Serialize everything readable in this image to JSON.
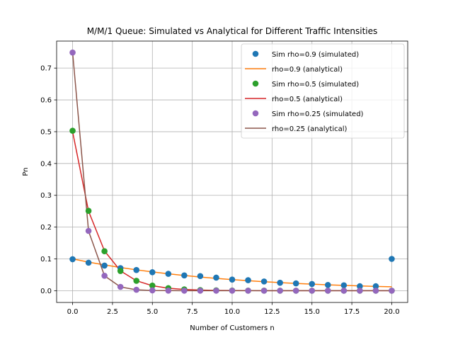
{
  "chart_data": {
    "type": "line",
    "title": "M/M/1 Queue: Simulated vs Analytical for Different Traffic Intensities",
    "xlabel": "Number of Customers n",
    "ylabel": "Pn",
    "xlim": [
      -1,
      21
    ],
    "ylim": [
      -0.037,
      0.785
    ],
    "xticks": [
      0.0,
      2.5,
      5.0,
      7.5,
      10.0,
      12.5,
      15.0,
      17.5,
      20.0
    ],
    "xtick_labels": [
      "0.0",
      "2.5",
      "5.0",
      "7.5",
      "10.0",
      "12.5",
      "15.0",
      "17.5",
      "20.0"
    ],
    "yticks": [
      0.0,
      0.1,
      0.2,
      0.3,
      0.4,
      0.5,
      0.6,
      0.7
    ],
    "ytick_labels": [
      "0.0",
      "0.1",
      "0.2",
      "0.3",
      "0.4",
      "0.5",
      "0.6",
      "0.7"
    ],
    "grid": true,
    "legend_position": "top-right",
    "x": [
      0,
      1,
      2,
      3,
      4,
      5,
      6,
      7,
      8,
      9,
      10,
      11,
      12,
      13,
      14,
      15,
      16,
      17,
      18,
      19,
      20
    ],
    "series": [
      {
        "name": "Sim rho=0.9 (simulated)",
        "kind": "scatter",
        "color": "#1f77b4",
        "values": [
          0.099,
          0.088,
          0.079,
          0.071,
          0.065,
          0.058,
          0.053,
          0.048,
          0.046,
          0.041,
          0.035,
          0.033,
          0.029,
          0.025,
          0.023,
          0.021,
          0.018,
          0.017,
          0.014,
          0.014,
          0.1
        ]
      },
      {
        "name": "rho=0.9 (analytical)",
        "kind": "line",
        "color": "#ff7f0e",
        "values": [
          0.1,
          0.09,
          0.081,
          0.0729,
          0.0656,
          0.059,
          0.0531,
          0.0478,
          0.043,
          0.0387,
          0.0349,
          0.0314,
          0.0282,
          0.0254,
          0.0229,
          0.0206,
          0.0185,
          0.0167,
          0.015,
          0.0135,
          0.0122
        ]
      },
      {
        "name": "Sim rho=0.5 (simulated)",
        "kind": "scatter",
        "color": "#2ca02c",
        "values": [
          0.503,
          0.251,
          0.124,
          0.062,
          0.031,
          0.016,
          0.008,
          0.004,
          0.002,
          0.001,
          0.0005,
          0.0002,
          0.0001,
          0.0,
          0.0,
          0.0,
          0.0,
          0.0,
          0.0,
          0.0,
          0.0
        ]
      },
      {
        "name": "rho=0.5 (analytical)",
        "kind": "line",
        "color": "#d62728",
        "values": [
          0.5,
          0.25,
          0.125,
          0.0625,
          0.0313,
          0.0156,
          0.0078,
          0.0039,
          0.002,
          0.001,
          0.0005,
          0.0002,
          0.0001,
          0.0001,
          0.0,
          0.0,
          0.0,
          0.0,
          0.0,
          0.0,
          0.0
        ]
      },
      {
        "name": "Sim rho=0.25 (simulated)",
        "kind": "scatter",
        "color": "#9467bd",
        "values": [
          0.749,
          0.188,
          0.047,
          0.012,
          0.003,
          0.001,
          0.0002,
          0.0,
          0.0,
          0.0,
          0.0,
          0.0,
          0.0,
          0.0,
          0.0,
          0.0,
          0.0,
          0.0,
          0.0,
          0.0,
          0.0
        ]
      },
      {
        "name": "rho=0.25 (analytical)",
        "kind": "line",
        "color": "#8c564b",
        "values": [
          0.75,
          0.1875,
          0.0469,
          0.0117,
          0.0029,
          0.0007,
          0.0002,
          0.0,
          0.0,
          0.0,
          0.0,
          0.0,
          0.0,
          0.0,
          0.0,
          0.0,
          0.0,
          0.0,
          0.0,
          0.0,
          0.0
        ]
      }
    ]
  }
}
